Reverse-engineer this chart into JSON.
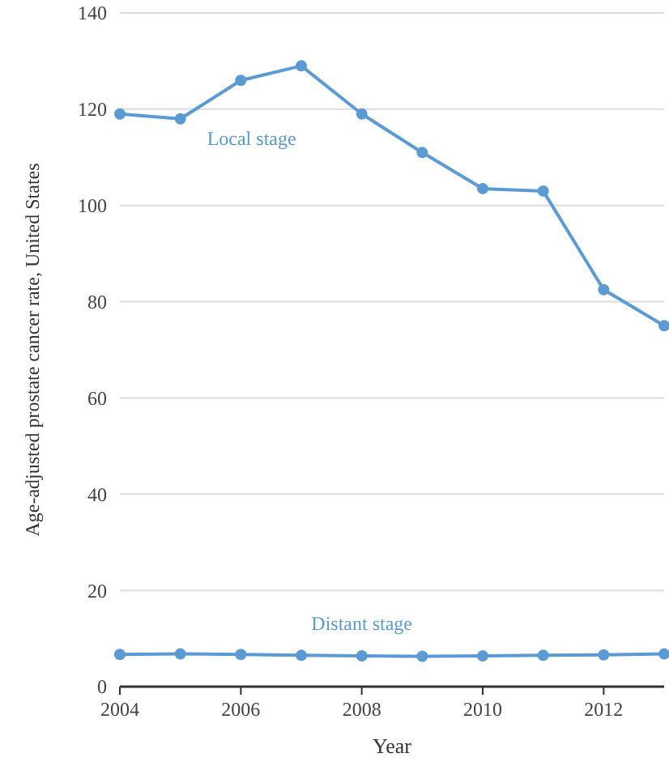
{
  "chart_data": {
    "type": "line",
    "xlabel": "Year",
    "ylabel": "Age-adjusted prostate cancer rate, United States",
    "x": [
      2004,
      2005,
      2006,
      2007,
      2008,
      2009,
      2010,
      2011,
      2012,
      2013
    ],
    "series": [
      {
        "name": "Local stage",
        "color": "#5b9bd5",
        "values": [
          119,
          118,
          126,
          129,
          119,
          111,
          103.5,
          103,
          82.5,
          75
        ]
      },
      {
        "name": "Distant stage",
        "color": "#5b9bd5",
        "values": [
          6.7,
          6.8,
          6.7,
          6.5,
          6.4,
          6.3,
          6.4,
          6.5,
          6.6,
          6.8
        ]
      }
    ],
    "xlim": [
      2004,
      2013
    ],
    "xticks": [
      2004,
      2006,
      2008,
      2010,
      2012
    ],
    "ylim": [
      0,
      140
    ],
    "yticks": [
      0,
      20,
      40,
      60,
      80,
      100,
      120,
      140
    ],
    "grid": "y",
    "marker": "circle",
    "line_style": "solid"
  }
}
